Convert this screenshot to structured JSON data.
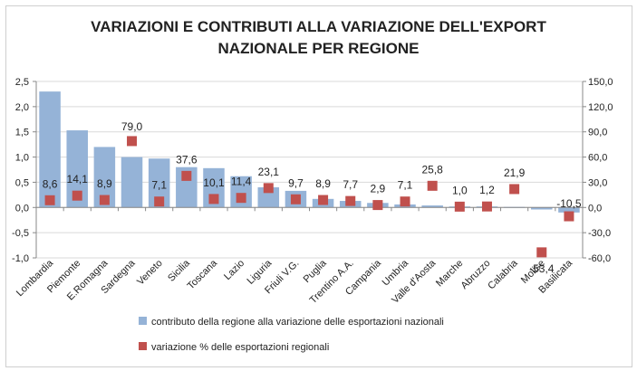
{
  "chart_data": {
    "type": "bar",
    "title_line1": "VARIAZIONI E CONTRIBUTI ALLA VARIAZIONE DELL'EXPORT",
    "title_line2": "NAZIONALE PER REGIONE",
    "categories": [
      "Lombardia",
      "Piemonte",
      "E.Romagna",
      "Sardegna",
      "Veneto",
      "Sicilia",
      "Toscana",
      "Lazio",
      "Liguria",
      "Friuli V.G.",
      "Puglia",
      "Trentino A.A.",
      "Campania",
      "Umbria",
      "Valle d'Aosta",
      "Marche",
      "Abruzzo",
      "Calabria",
      "Molise",
      "Basilicata"
    ],
    "series": [
      {
        "name": "contributo della regione alla variazione delle esportazioni nazionali",
        "type": "bar",
        "axis": "left",
        "color": "#95b3d7",
        "values": [
          2.3,
          1.53,
          1.2,
          1.0,
          0.97,
          0.8,
          0.78,
          0.62,
          0.4,
          0.33,
          0.17,
          0.13,
          0.09,
          0.06,
          0.04,
          0.02,
          0.02,
          0.01,
          -0.04,
          -0.1
        ]
      },
      {
        "name": "variazione % delle esportazioni regionali",
        "type": "scatter",
        "axis": "right",
        "color": "#c0504d",
        "values": [
          8.6,
          14.1,
          8.9,
          79.0,
          7.1,
          37.6,
          10.1,
          11.4,
          23.1,
          9.7,
          8.9,
          7.7,
          2.9,
          7.1,
          25.8,
          1.0,
          1.2,
          21.9,
          -53.4,
          -10.5
        ],
        "labels": [
          "8,6",
          "14,1",
          "8,9",
          "79,0",
          "7,1",
          "37,6",
          "10,1",
          "11,4",
          "23,1",
          "9,7",
          "8,9",
          "7,7",
          "2,9",
          "7,1",
          "25,8",
          "1,0",
          "1,2",
          "21,9",
          "-53,4",
          "-10,5"
        ]
      }
    ],
    "y_left": {
      "min": -1.0,
      "max": 2.5,
      "step": 0.5,
      "ticks": [
        "2,5",
        "2,0",
        "1,5",
        "1,0",
        "0,5",
        "0,0",
        "-0,5",
        "-1,0"
      ]
    },
    "y_right": {
      "min": -60.0,
      "max": 150.0,
      "step": 30.0,
      "ticks": [
        "150,0",
        "120,0",
        "90,0",
        "60,0",
        "30,0",
        "0,0",
        "-30,0",
        "-60,0"
      ]
    },
    "grid": true,
    "legend_position": "bottom"
  }
}
